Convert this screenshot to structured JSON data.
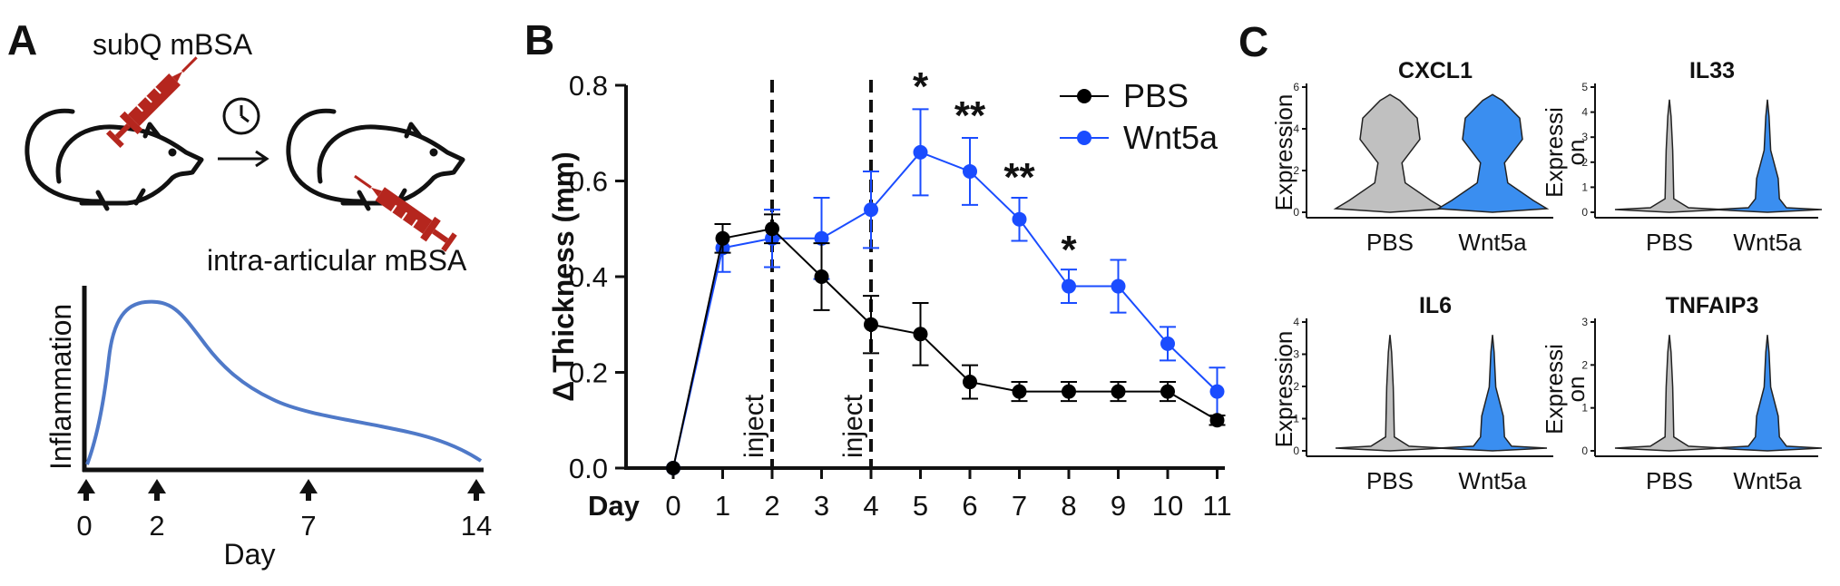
{
  "panels": {
    "a": "A",
    "b": "B",
    "c": "C"
  },
  "schematic": {
    "subq_label": "subQ mBSA",
    "intra_label": "intra-articular mBSA",
    "y_label": "Inflammation",
    "x_label": "Day",
    "ticks": [
      "0",
      "2",
      "7",
      "14"
    ]
  },
  "chart_data": [
    {
      "type": "line",
      "x": [
        0,
        1,
        2,
        3,
        4,
        5,
        6,
        7,
        8,
        9,
        10,
        11
      ],
      "xlabel": "Day",
      "ylabel": "Δ Thickness (mm)",
      "ylim": [
        0,
        0.8
      ],
      "yticks": [
        "0.0",
        "0.2",
        "0.4",
        "0.6",
        "0.8"
      ],
      "grid": false,
      "legend": "top-right",
      "series": [
        {
          "name": "PBS",
          "color": "#000000",
          "values": [
            0.0,
            0.48,
            0.5,
            0.4,
            0.3,
            0.28,
            0.18,
            0.16,
            0.16,
            0.16,
            0.16,
            0.1
          ],
          "errors": [
            0.0,
            0.03,
            0.03,
            0.07,
            0.06,
            0.065,
            0.035,
            0.02,
            0.02,
            0.02,
            0.02,
            0.01
          ]
        },
        {
          "name": "Wnt5a",
          "color": "#1a4cff",
          "values": [
            0.0,
            0.46,
            0.48,
            0.48,
            0.54,
            0.66,
            0.62,
            0.52,
            0.38,
            0.38,
            0.26,
            0.16
          ],
          "errors": [
            0.0,
            0.05,
            0.06,
            0.085,
            0.08,
            0.09,
            0.07,
            0.045,
            0.035,
            0.055,
            0.035,
            0.05
          ]
        }
      ],
      "annotations": [
        {
          "text": "inject",
          "x": 2
        },
        {
          "text": "inject",
          "x": 4
        }
      ],
      "significance": [
        {
          "x": 5,
          "text": "*"
        },
        {
          "x": 6,
          "text": "**"
        },
        {
          "x": 7,
          "text": "**"
        },
        {
          "x": 8,
          "text": "*"
        }
      ]
    },
    {
      "type": "violin",
      "title": "CXCL1",
      "categories": [
        "PBS",
        "Wnt5a"
      ],
      "ylabel": "Expression",
      "yticks": [
        "0",
        "2",
        "4",
        "6"
      ],
      "ylim": [
        0,
        6
      ]
    },
    {
      "type": "violin",
      "title": "IL33",
      "categories": [
        "PBS",
        "Wnt5a"
      ],
      "ylabel_lines": [
        "Expressi",
        "on"
      ],
      "yticks": [
        "0",
        "1",
        "2",
        "3",
        "4",
        "5"
      ],
      "ylim": [
        0,
        5
      ]
    },
    {
      "type": "violin",
      "title": "IL6",
      "categories": [
        "PBS",
        "Wnt5a"
      ],
      "ylabel": "Expression",
      "yticks": [
        "0",
        "1",
        "2",
        "3",
        "4"
      ],
      "ylim": [
        0,
        4
      ]
    },
    {
      "type": "violin",
      "title": "TNFAIP3",
      "categories": [
        "PBS",
        "Wnt5a"
      ],
      "ylabel_lines": [
        "Expressi",
        "on"
      ],
      "yticks": [
        "0",
        "1",
        "2",
        "3"
      ],
      "ylim": [
        0,
        3
      ]
    }
  ],
  "colors": {
    "pbs_violin": "#c0c0c0",
    "wnt5a_violin": "#3a8ef0",
    "syringe": "#b5261e",
    "curve": "#4f79c8"
  }
}
